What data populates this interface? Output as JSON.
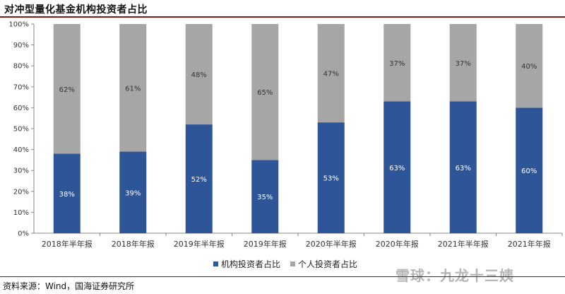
{
  "title": "对冲型量化基金机构投资者占比",
  "source": "资料来源：Wind，国海证券研究所",
  "watermark": "雪球：九龙十三姨",
  "colors": {
    "institution": "#2e5597",
    "individual": "#a6a6a6",
    "title_rule": "#8b1a1a"
  },
  "chart_data": {
    "type": "bar",
    "stacked": true,
    "categories": [
      "2018年半年报",
      "2018年年报",
      "2019年半年报",
      "2019年年报",
      "2020年半年报",
      "2020年年报",
      "2021年半年报",
      "2021年年报"
    ],
    "series": [
      {
        "name": "机构投资者占比",
        "values": [
          38,
          39,
          52,
          35,
          53,
          63,
          63,
          60
        ]
      },
      {
        "name": "个人投资者占比",
        "values": [
          62,
          61,
          48,
          65,
          47,
          37,
          37,
          40
        ]
      }
    ],
    "value_suffix": "%",
    "ylim": [
      0,
      100
    ],
    "yticks": [
      "0%",
      "10%",
      "20%",
      "30%",
      "40%",
      "50%",
      "60%",
      "70%",
      "80%",
      "90%",
      "100%"
    ],
    "legend_position": "bottom",
    "grid": false
  }
}
